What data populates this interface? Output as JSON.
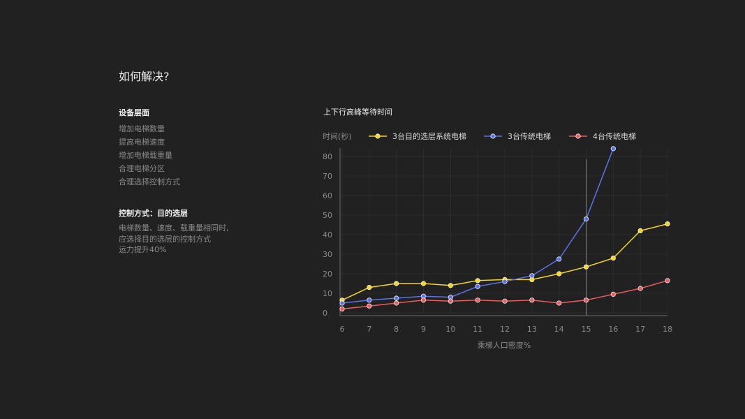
{
  "heading": "如何解决?",
  "equipment": {
    "title": "设备层面",
    "items": [
      "增加电梯数量",
      "提高电梯速度",
      "增加电梯载重量",
      "合理电梯分区",
      "合理选择控制方式"
    ]
  },
  "control": {
    "title": "控制方式：目的选层",
    "lines": [
      "电梯数量、速度、载重量相同时,",
      "应选择目的选层的控制方式",
      "运力提升40%"
    ]
  },
  "chart_data": {
    "type": "line",
    "title": "上下行高峰等待时间",
    "xlabel": "乘梯人口密度%",
    "ylabel": "时间(秒)",
    "x": [
      6,
      7,
      8,
      9,
      10,
      11,
      12,
      13,
      14,
      15,
      16,
      17,
      18
    ],
    "xlim": [
      6,
      18
    ],
    "ylim": [
      0,
      80
    ],
    "yticks": [
      0,
      10,
      20,
      30,
      40,
      50,
      60,
      70,
      80
    ],
    "grid": true,
    "legend_position": "top",
    "reference_line_x": 15,
    "series": [
      {
        "name": "3台目的选层系统电梯",
        "color": "#f5d623",
        "values": [
          6.5,
          13,
          15,
          15,
          14,
          16.5,
          17,
          17,
          20,
          23.5,
          28,
          42,
          45.5
        ]
      },
      {
        "name": "3台传统电梯",
        "color": "#5b73e8",
        "values": [
          5,
          6.5,
          7.5,
          8.5,
          8,
          13.5,
          16,
          19,
          27.5,
          48,
          84,
          null,
          null
        ]
      },
      {
        "name": "4台传统电梯",
        "color": "#e85d5d",
        "values": [
          2,
          3.5,
          5,
          6.5,
          6,
          6.5,
          6,
          6.5,
          5,
          6.5,
          9.5,
          12.5,
          16.5
        ]
      }
    ]
  }
}
